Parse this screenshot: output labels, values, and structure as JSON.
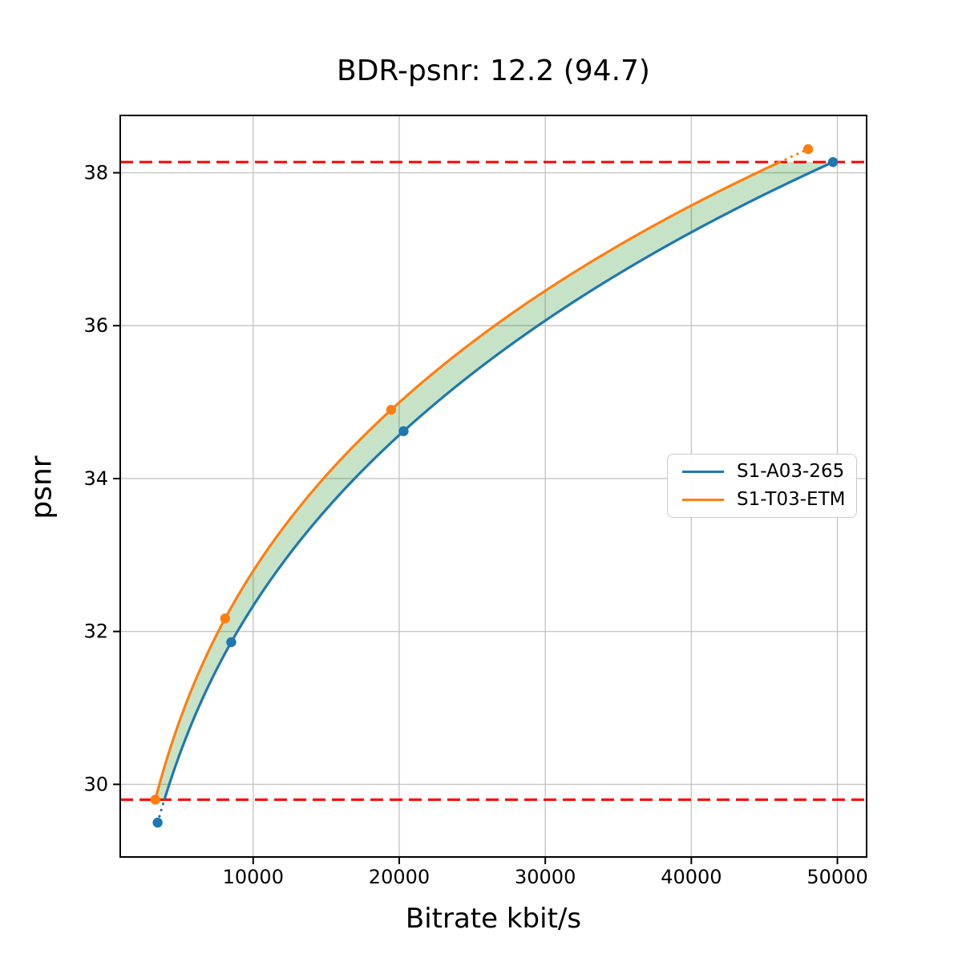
{
  "chart_data": {
    "type": "line",
    "title": "BDR-psnr: 12.2 (94.7)",
    "xlabel": "Bitrate kbit/s",
    "ylabel": "psnr",
    "xlim": [
      900,
      52000
    ],
    "ylim": [
      29.05,
      38.75
    ],
    "x_ticks": [
      10000,
      20000,
      30000,
      40000,
      50000
    ],
    "y_ticks": [
      30,
      32,
      34,
      36,
      38
    ],
    "grid": true,
    "grid_color": "#c6c6c6",
    "legend_position": "center right",
    "series": [
      {
        "name": "S1-A03-265",
        "color": "#1f77b4",
        "points": [
          [
            3460,
            29.5
          ],
          [
            8500,
            31.86
          ],
          [
            20300,
            34.62
          ],
          [
            49700,
            38.14
          ]
        ]
      },
      {
        "name": "S1-T03-ETM",
        "color": "#ff7f0e",
        "points": [
          [
            3300,
            29.8
          ],
          [
            8080,
            32.17
          ],
          [
            19450,
            34.9
          ],
          [
            48000,
            38.31
          ]
        ]
      }
    ],
    "integration_bounds": {
      "lower_psnr": 29.8,
      "upper_psnr": 38.14,
      "line_color": "#ff0000",
      "line_style": "dashed"
    },
    "shade_between_curves": true,
    "shade_color": "rgba(0, 128, 0, 0.22)"
  }
}
